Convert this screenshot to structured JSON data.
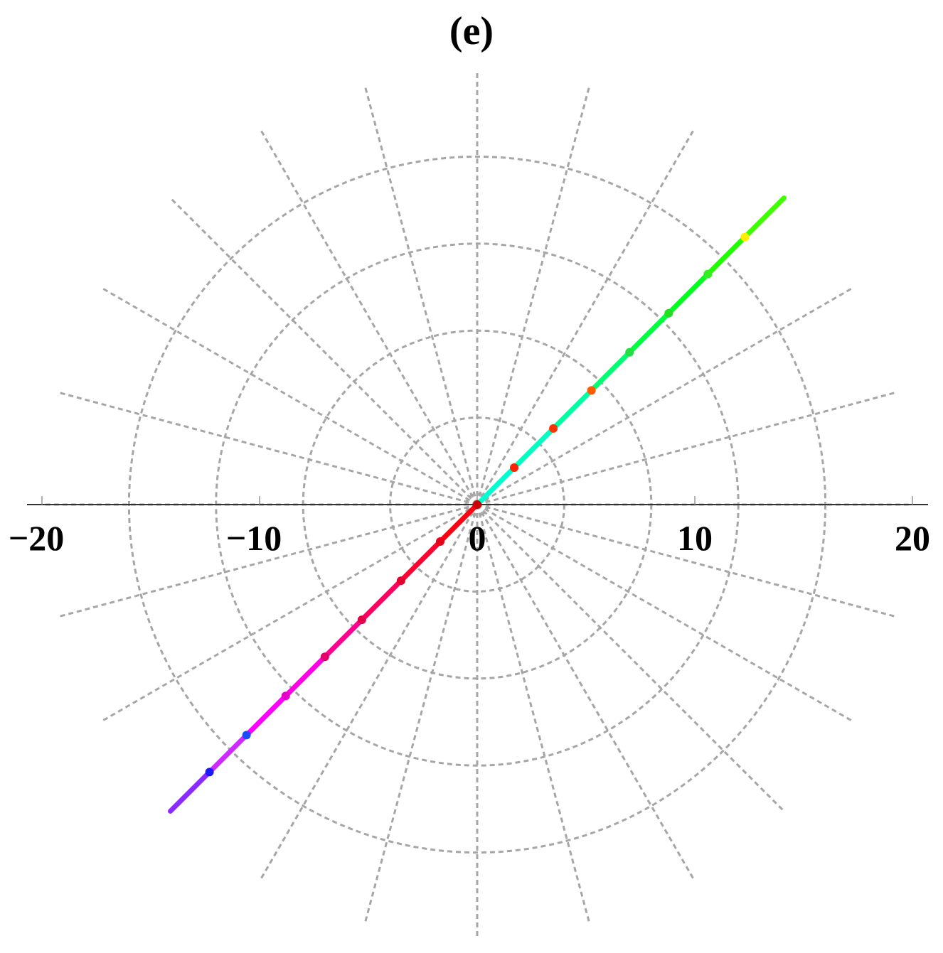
{
  "chart_data": {
    "type": "scatter",
    "title": "(e)",
    "xlabel": "",
    "ylabel": "",
    "xlim": [
      -20,
      20
    ],
    "x_ticks": [
      -20,
      -10,
      0,
      10,
      20
    ],
    "x_tick_labels": [
      "−20",
      "−10",
      "0",
      "10",
      "20"
    ],
    "grid": "polar",
    "polar_grid": {
      "radii": [
        0.5,
        4,
        8,
        12,
        16
      ],
      "spoke_angles_deg": [
        0,
        15,
        30,
        45,
        60,
        75,
        90,
        105,
        120,
        135,
        150,
        165,
        180,
        195,
        210,
        225,
        240,
        255,
        270,
        285,
        300,
        315,
        330,
        345
      ],
      "spoke_length": 20,
      "color": "#a6a6a6"
    },
    "series": [
      {
        "values": [
          {
            "x": -14.1,
            "y": -14.1,
            "color": "#8c2bff"
          },
          {
            "x": -12.2,
            "y": -12.2,
            "color": "#cc2bff"
          },
          {
            "x": -10.6,
            "y": -10.6,
            "color": "#ff00ff"
          },
          {
            "x": -8.8,
            "y": -8.8,
            "color": "#ff00e0"
          },
          {
            "x": -7.0,
            "y": -7.0,
            "color": "#ff0090"
          },
          {
            "x": -5.3,
            "y": -5.3,
            "color": "#ff0060"
          },
          {
            "x": -3.5,
            "y": -3.5,
            "color": "#ff0030"
          },
          {
            "x": -1.7,
            "y": -1.7,
            "color": "#ff0010"
          },
          {
            "x": 0,
            "y": 0,
            "color": "#ff0000"
          },
          {
            "x": 1.7,
            "y": 1.7,
            "color": "#00ffd0"
          },
          {
            "x": 3.5,
            "y": 3.5,
            "color": "#00ffc0"
          },
          {
            "x": 5.3,
            "y": 5.3,
            "color": "#00ffa0"
          },
          {
            "x": 7.0,
            "y": 7.0,
            "color": "#00ff70"
          },
          {
            "x": 8.8,
            "y": 8.8,
            "color": "#00ff40"
          },
          {
            "x": 10.6,
            "y": 10.6,
            "color": "#00ff20"
          },
          {
            "x": 12.3,
            "y": 12.3,
            "color": "#20ff00"
          },
          {
            "x": 14.1,
            "y": 14.1,
            "color": "#40ff00"
          }
        ]
      }
    ],
    "markers": [
      {
        "x": -12.3,
        "y": -12.3,
        "color": "#1a1aff"
      },
      {
        "x": -10.6,
        "y": -10.6,
        "color": "#1a4dff"
      },
      {
        "x": -8.8,
        "y": -8.8,
        "color": "#e600c8"
      },
      {
        "x": -7.0,
        "y": -7.0,
        "color": "#e6006b"
      },
      {
        "x": -5.3,
        "y": -5.3,
        "color": "#e6004a"
      },
      {
        "x": -3.5,
        "y": -3.5,
        "color": "#e6002e"
      },
      {
        "x": -1.7,
        "y": -1.7,
        "color": "#e60018"
      },
      {
        "x": 0,
        "y": 0,
        "color": "#cc0000"
      },
      {
        "x": 1.7,
        "y": 1.7,
        "color": "#ff2200"
      },
      {
        "x": 3.5,
        "y": 3.5,
        "color": "#ff3300"
      },
      {
        "x": 5.25,
        "y": 5.25,
        "color": "#ff5a00"
      },
      {
        "x": 7.0,
        "y": 7.0,
        "color": "#22dd44"
      },
      {
        "x": 8.8,
        "y": 8.8,
        "color": "#22dd22"
      },
      {
        "x": 10.6,
        "y": 10.6,
        "color": "#33ee22"
      },
      {
        "x": 12.3,
        "y": 12.3,
        "color": "#ffee00"
      }
    ]
  }
}
